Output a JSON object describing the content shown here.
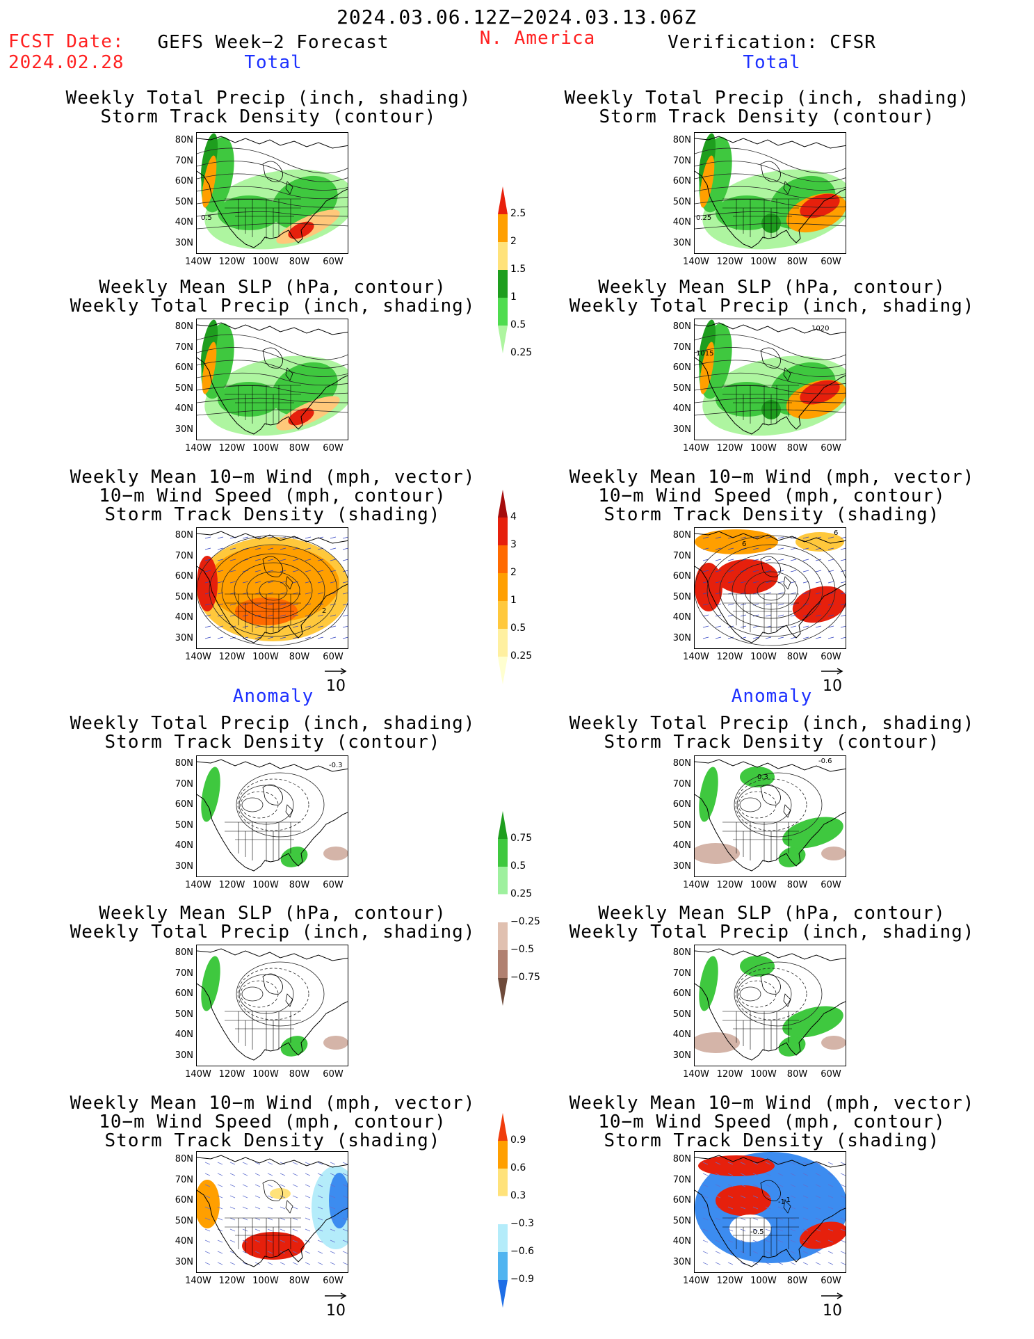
{
  "header": {
    "date_range": "2024.03.06.12Z−2024.03.13.06Z",
    "fcst_date_label": "FCST Date:",
    "fcst_date": "2024.02.28",
    "left_title": "GEFS Week−2 Forecast",
    "region": "N. America",
    "right_title": "Verification: CFSR"
  },
  "sections": {
    "total": "Total",
    "anomaly": "Anomaly"
  },
  "titles": {
    "precip_storm": [
      "Weekly Total Precip (inch, shading)",
      "Storm Track Density (contour)"
    ],
    "slp_precip": [
      "Weekly Mean SLP (hPa, contour)",
      "Weekly Total Precip (inch, shading)"
    ],
    "wind_storm": [
      "Weekly Mean 10−m Wind (mph, vector)",
      "10−m Wind Speed (mph, contour)",
      "Storm Track Density (shading)"
    ]
  },
  "axes": {
    "lat_labels": [
      "80N",
      "70N",
      "60N",
      "50N",
      "40N",
      "30N"
    ],
    "lon_labels": [
      "140W",
      "120W",
      "100W",
      "80W",
      "60W"
    ]
  },
  "vector_scale": "10",
  "map_annotations": {
    "f_precip_total": "0.5",
    "v_precip_total": "0.25",
    "v_slp_1020": "1020",
    "v_slp_1015": "1015",
    "f_wind_total": "2",
    "v_wind_total_a": "6",
    "v_wind_total_b": "6",
    "f_precip_anom": "-0.3",
    "v_precip_anom_a": "0.3",
    "v_precip_anom_b": "-0.6",
    "v_wind_anom_a": "-1",
    "v_wind_anom_b": "-1",
    "v_wind_anom_c": "-0.5"
  },
  "colorbars": {
    "precip_total": {
      "labels": [
        "2.5",
        "2",
        "1.5",
        "1",
        "0.5",
        "0.25"
      ],
      "colors": [
        "#e8200c",
        "#ff9f00",
        "#ffe27a",
        "#1e9e1e",
        "#4fdc4f",
        "#aef5a0"
      ]
    },
    "storm_total": {
      "labels": [
        "4",
        "3",
        "2",
        "1",
        "0.5",
        "0.25"
      ],
      "colors": [
        "#a50c0c",
        "#e6200c",
        "#ff6a00",
        "#ff9f00",
        "#ffc83c",
        "#fff0a0",
        "#ffffd0"
      ]
    },
    "precip_anom": {
      "labels": [
        "0.75",
        "0.5",
        "0.25",
        "−0.25",
        "−0.5",
        "−0.75"
      ],
      "colors": [
        "#1e9e1e",
        "#3fc83f",
        "#9ef09e",
        "#ffffff",
        "#e0c0b0",
        "#b08070",
        "#6e4a3a"
      ]
    },
    "storm_anom": {
      "labels": [
        "0.9",
        "0.6",
        "0.3",
        "−0.3",
        "−0.6",
        "−0.9"
      ],
      "colors": [
        "#f03c0c",
        "#ff9f00",
        "#ffe27a",
        "#ffffff",
        "#b4ecfa",
        "#50b4f0",
        "#1e6ee6"
      ]
    }
  },
  "colors": {
    "title_red": "#ff2020",
    "section_blue": "#1c30ff",
    "precip_green": "#3fc83f",
    "precip_light": "#aef5a0",
    "precip_dark": "#1e9e1e",
    "storm_orange": "#ff9f00",
    "storm_red": "#e6200c",
    "anom_blue": "#3c8cf0",
    "anom_brown": "#d4b4a8"
  }
}
